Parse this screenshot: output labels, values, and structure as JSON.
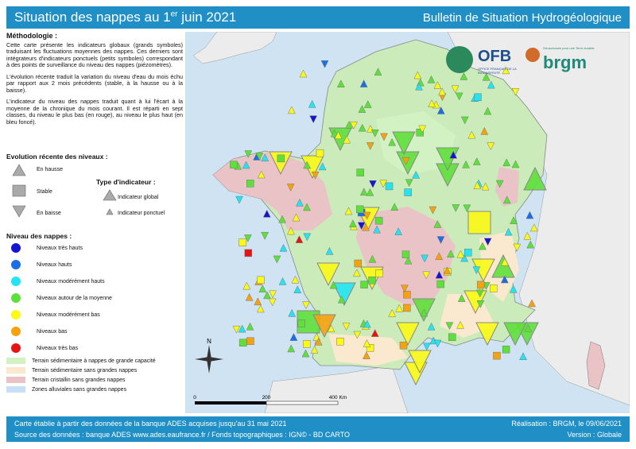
{
  "header": {
    "title_pre": "Situation des nappes au 1",
    "title_sup": "er",
    "title_post": " juin 2021",
    "subtitle": "Bulletin de Situation Hydrogéologique"
  },
  "method": {
    "heading": "Méthodologie :",
    "p1": "Cette carte présente les indicateurs globaux (grands symboles) traduisant les fluctuations moyennes des nappes. Ces derniers sont intégrateurs d'indicateurs ponctuels (petits symboles) correspondant à des points de surveillance du niveau des nappes (piézomètres).",
    "p2": "L'évolution récente traduit la variation du niveau d'eau du mois échu par rapport aux 2 mois précédents (stable, à la hausse ou à la baisse).",
    "p3": "L'indicateur du niveau des nappes traduit quant à lui l'écart à la moyenne de la chronique du mois courant. Il est réparti en sept classes, du niveau le plus bas (en rouge), au niveau le plus haut (en bleu foncé)."
  },
  "evolution": {
    "heading": "Evolution récente des niveaux :",
    "up": "En hausse",
    "stable": "Stable",
    "down": "En baisse"
  },
  "type": {
    "heading": "Type d'indicateur :",
    "global": "Indicateur global",
    "point": "Indicateur ponctuel"
  },
  "levels": {
    "heading": "Niveau des nappes :",
    "items": [
      {
        "label": "Niveaux très hauts",
        "color": "#1414d2"
      },
      {
        "label": "Niveaux hauts",
        "color": "#1a6fe6"
      },
      {
        "label": "Niveaux modérément hauts",
        "color": "#22e4f2"
      },
      {
        "label": "Niveaux autour de la moyenne",
        "color": "#5ee03a"
      },
      {
        "label": "Niveaux modérément bas",
        "color": "#fafa14"
      },
      {
        "label": "Niveaux bas",
        "color": "#f6a20e"
      },
      {
        "label": "Niveaux très bas",
        "color": "#e61414"
      }
    ]
  },
  "zones": [
    {
      "label": "Terrain sédimentaire à nappes de grande capacité",
      "color": "#d2f2c4"
    },
    {
      "label": "Terrain sédimentaire sans grandes nappes",
      "color": "#fbe9cf"
    },
    {
      "label": "Terrain cristallin sans grandes nappes",
      "color": "#e9c3c6"
    },
    {
      "label": "Zones alluviales sans grandes nappes",
      "color": "#c9dff5"
    }
  ],
  "map": {
    "north": "N",
    "scale": [
      "0",
      "200",
      "400 Km"
    ]
  },
  "logos": {
    "ofb": "OFB",
    "ofb_sub": "OFFICE FRANÇAIS DE LA BIODIVERSITÉ",
    "brgm": "brgm",
    "brgm_sub": "Géosciences pour une Terre durable"
  },
  "footer": {
    "l1": "Carte établie à partir des données de la banque ADES acquises jusqu'au 31 mai 2021",
    "l2": "Source des données : banque ADES www.ades.eaufrance.fr / Fonds topographiques : IGN© - BD CARTO",
    "r1": "Réalisation : BRGM, le 09/06/2021",
    "r2": "Version : Globale"
  }
}
